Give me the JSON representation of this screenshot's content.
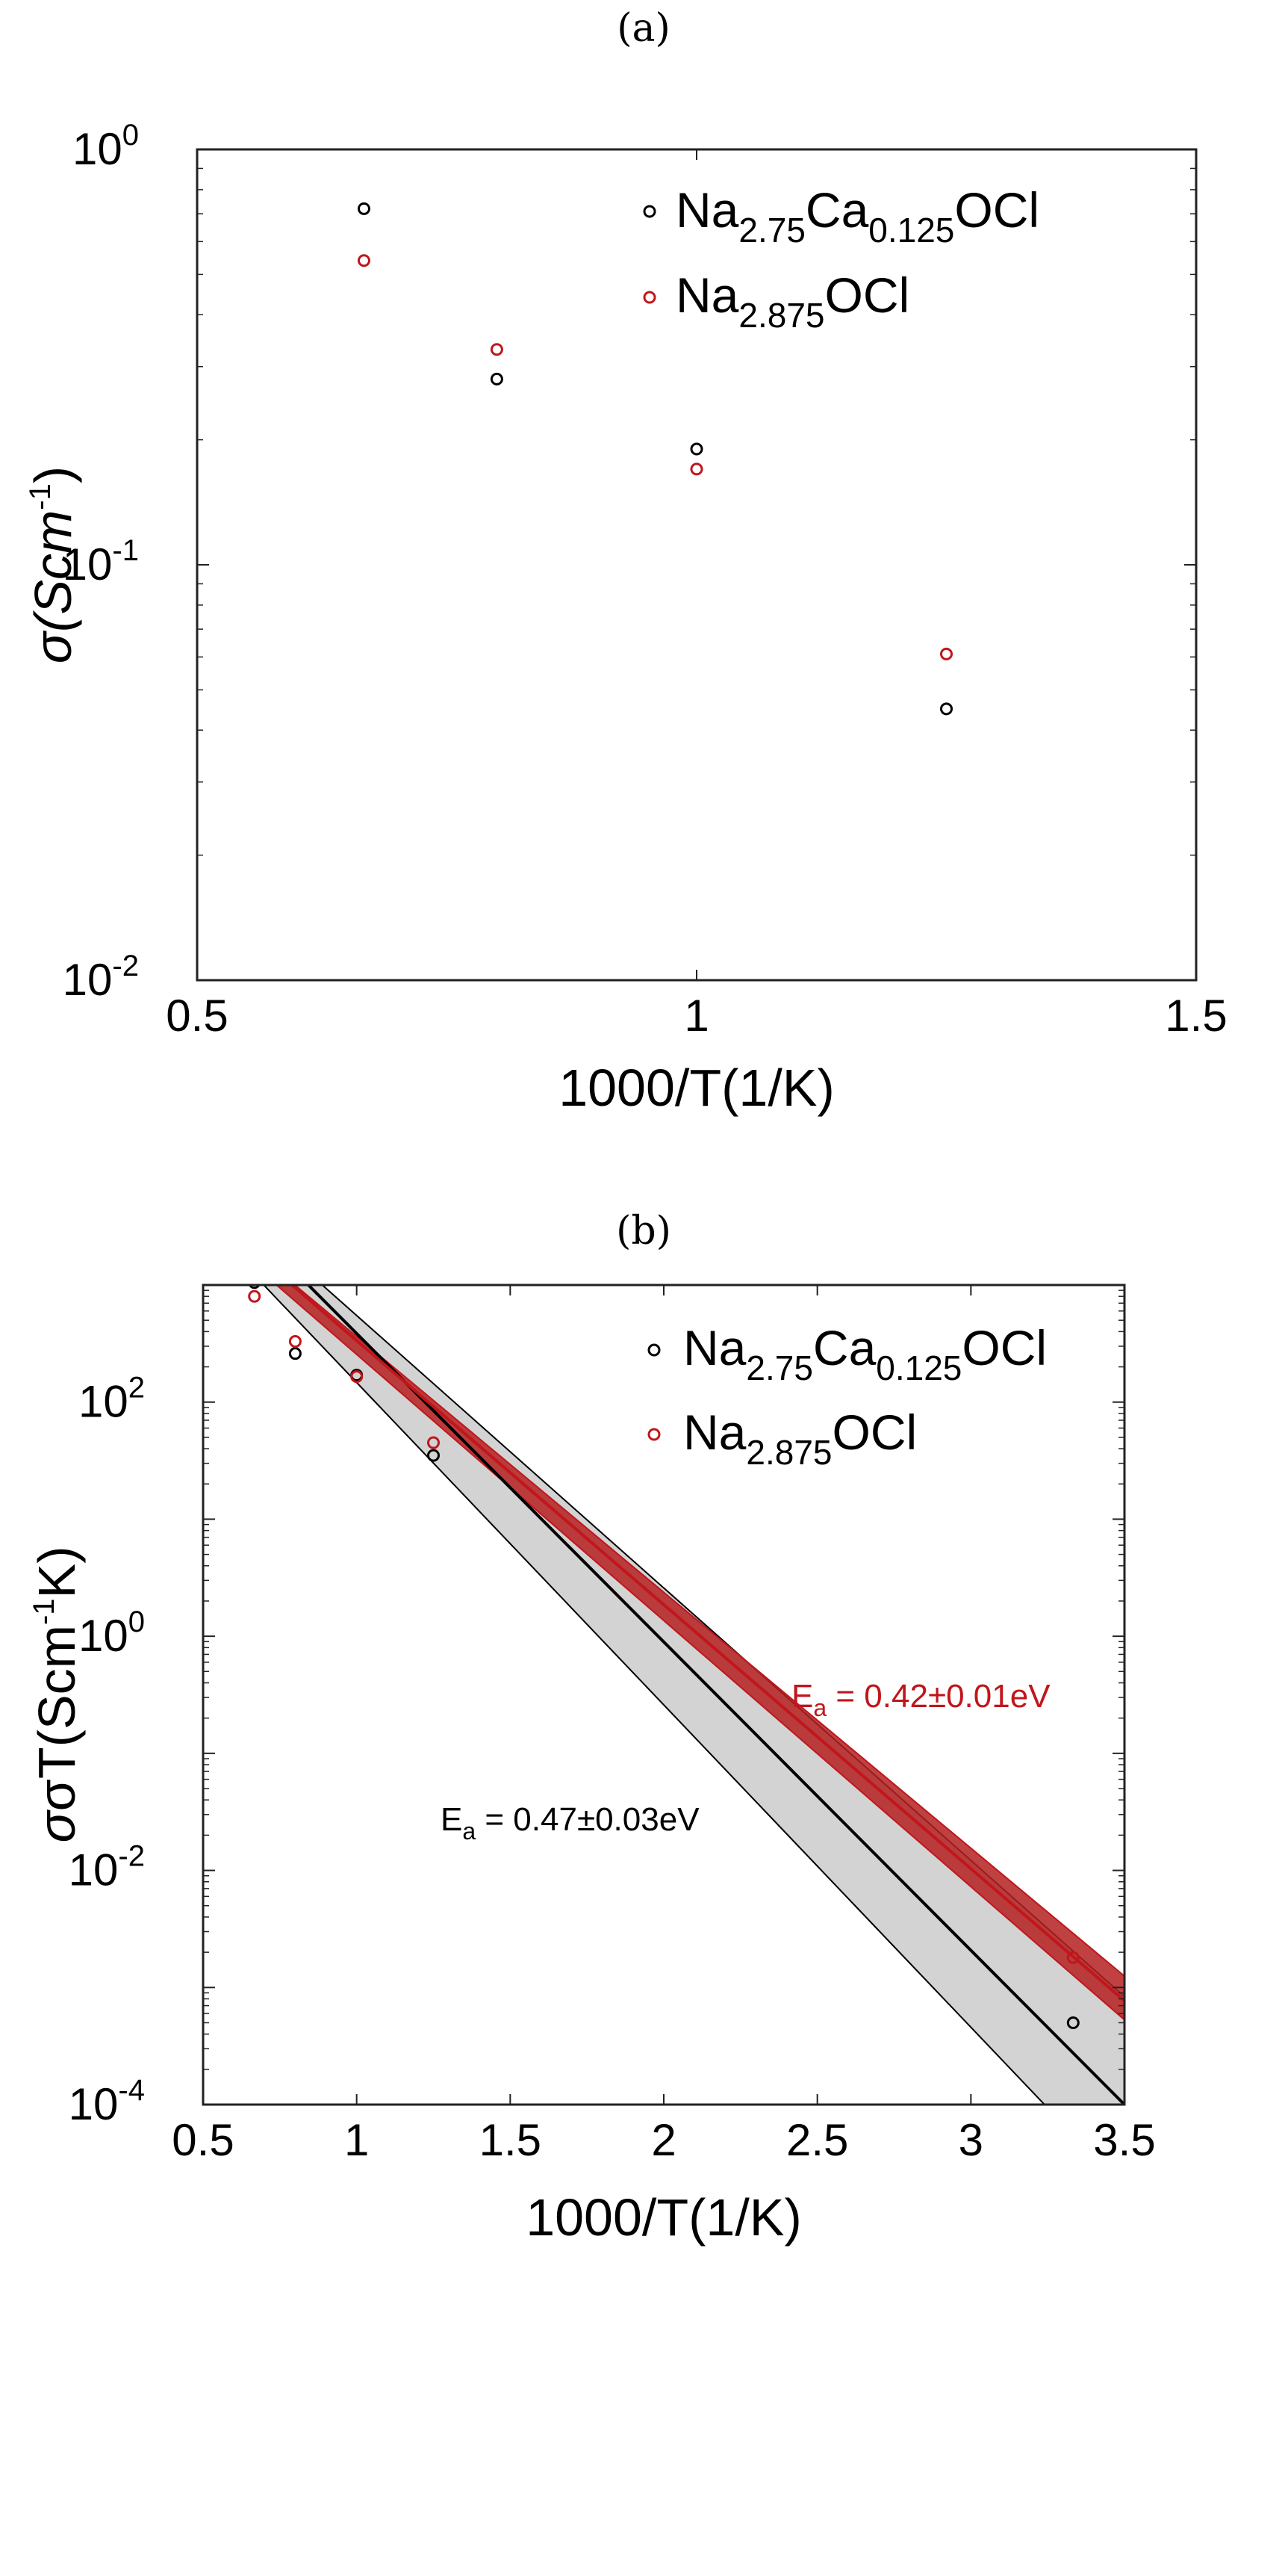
{
  "panel_labels": [
    "(a)",
    "(b)"
  ],
  "colors": {
    "black_series": "#000000",
    "red_series": "#c0161c",
    "grey_band": "#d0d0d0",
    "red_band": "#b02020"
  },
  "chart_data": [
    {
      "type": "scatter",
      "panel": "(a)",
      "xlabel": "1000/T(1/K)",
      "ylabel": {
        "base": "σ(Scm",
        "sup": "-1",
        "end": ")"
      },
      "xlim": [
        0.5,
        1.5
      ],
      "ylim": [
        0.01,
        1
      ],
      "yscale": "log",
      "xticks": [
        "0.5",
        "1",
        "1.5"
      ],
      "yticks": [
        {
          "base": "10",
          "exp": "0"
        },
        {
          "base": "10",
          "exp": "-1"
        },
        {
          "base": "10",
          "exp": "-2"
        }
      ],
      "series": [
        {
          "name": {
            "a": "Na",
            "s1": "2.75",
            "b": "Ca",
            "s2": "0.125",
            "c": "OCl"
          },
          "color": "#000000",
          "x": [
            0.667,
            0.8,
            1.0,
            1.25
          ],
          "y": [
            0.72,
            0.28,
            0.19,
            0.045
          ]
        },
        {
          "name": {
            "a": "Na",
            "s1": "2.875",
            "b": "OCl"
          },
          "color": "#c0161c",
          "x": [
            0.667,
            0.8,
            1.0,
            1.25
          ],
          "y": [
            0.54,
            0.33,
            0.17,
            0.061
          ]
        }
      ],
      "legend_position": "top-right"
    },
    {
      "type": "scatter",
      "panel": "(b)",
      "xlabel": "1000/T(1/K)",
      "ylabel": {
        "base": "σT(Scm",
        "sup": "-1",
        "end": "K)"
      },
      "xlim": [
        0.5,
        3.5
      ],
      "ylim": [
        0.0001,
        1000
      ],
      "yscale": "log",
      "xticks": [
        "0.5",
        "1",
        "1.5",
        "2",
        "2.5",
        "3",
        "3.5"
      ],
      "yticks": [
        {
          "base": "10",
          "exp": "2"
        },
        {
          "base": "10",
          "exp": "0"
        },
        {
          "base": "10",
          "exp": "-2"
        },
        {
          "base": "10",
          "exp": "-4"
        }
      ],
      "series": [
        {
          "name": {
            "a": "Na",
            "s1": "2.75",
            "b": "Ca",
            "s2": "0.125",
            "c": "OCl"
          },
          "color": "#000000",
          "x": [
            0.667,
            0.8,
            1.0,
            1.25,
            3.333
          ],
          "y": [
            1050,
            260,
            170,
            35,
            0.0005
          ],
          "fit": {
            "x": [
              0.5,
              3.5
            ],
            "y": [
              8000,
              0.0001
            ]
          },
          "band": {
            "upper": [
              8000,
              0.000835
            ],
            "lower": [
              3500,
              1.92e-05
            ]
          }
        },
        {
          "name": {
            "a": "Na",
            "s1": "2.875",
            "b": "OCl"
          },
          "color": "#c0161c",
          "x": [
            0.667,
            0.8,
            1.0,
            1.25,
            3.333
          ],
          "y": [
            800,
            330,
            165,
            45,
            0.0018
          ],
          "fit": {
            "x": [
              0.5,
              3.5
            ],
            "y": [
              4500,
              0.00077
            ]
          },
          "band": {
            "upper": [
              4500,
              0.00125
            ],
            "lower": [
              3500,
              0.00053
            ]
          }
        }
      ],
      "annotations": [
        {
          "prefix": "E",
          "sub": "a",
          "text": " = 0.42±0.01eV",
          "color": "#c0161c"
        },
        {
          "prefix": "E",
          "sub": "a",
          "text": " = 0.47±0.03eV",
          "color": "#000000"
        }
      ],
      "legend_position": "top-right"
    }
  ]
}
